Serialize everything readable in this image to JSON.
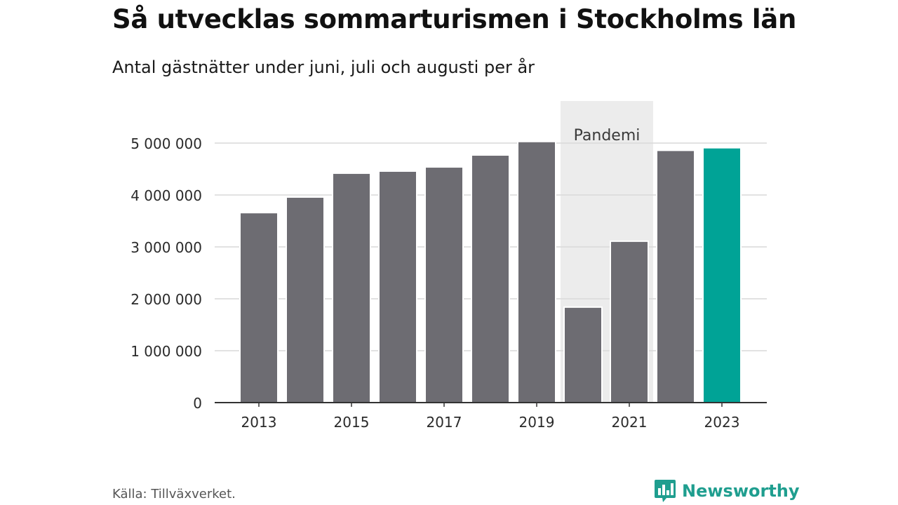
{
  "header": {
    "title": "Så utvecklas sommarturismen i Stockholms län",
    "subtitle": "Antal gästnätter under juni, juli och augusti per år"
  },
  "footer": {
    "source": "Källa: Tillväxverket.",
    "brand": "Newsworthy",
    "brand_icon": "newsworthy-logo-icon"
  },
  "colors": {
    "bar": "#6d6c72",
    "highlight": "#00a396",
    "shade": "#ececec",
    "grid": "#d9d9d9",
    "axis": "#333333",
    "brand": "#1f9e8f"
  },
  "chart_data": {
    "type": "bar",
    "categories": [
      "2013",
      "2014",
      "2015",
      "2016",
      "2017",
      "2018",
      "2019",
      "2020",
      "2021",
      "2022",
      "2023"
    ],
    "values": [
      3660000,
      3960000,
      4420000,
      4460000,
      4540000,
      4770000,
      5030000,
      1840000,
      3110000,
      4860000,
      4910000
    ],
    "highlight_category": "2023",
    "ylim": [
      0,
      5000000
    ],
    "yticks": [
      0,
      1000000,
      2000000,
      3000000,
      4000000,
      5000000
    ],
    "ytick_labels": [
      "0",
      "1 000 000",
      "2 000 000",
      "3 000 000",
      "4 000 000",
      "5 000 000"
    ],
    "xtick_labels": [
      "2013",
      "2015",
      "2017",
      "2019",
      "2021",
      "2023"
    ],
    "grid": true,
    "annotation": {
      "label": "Pandemi",
      "from": "2020",
      "to": "2021"
    }
  }
}
